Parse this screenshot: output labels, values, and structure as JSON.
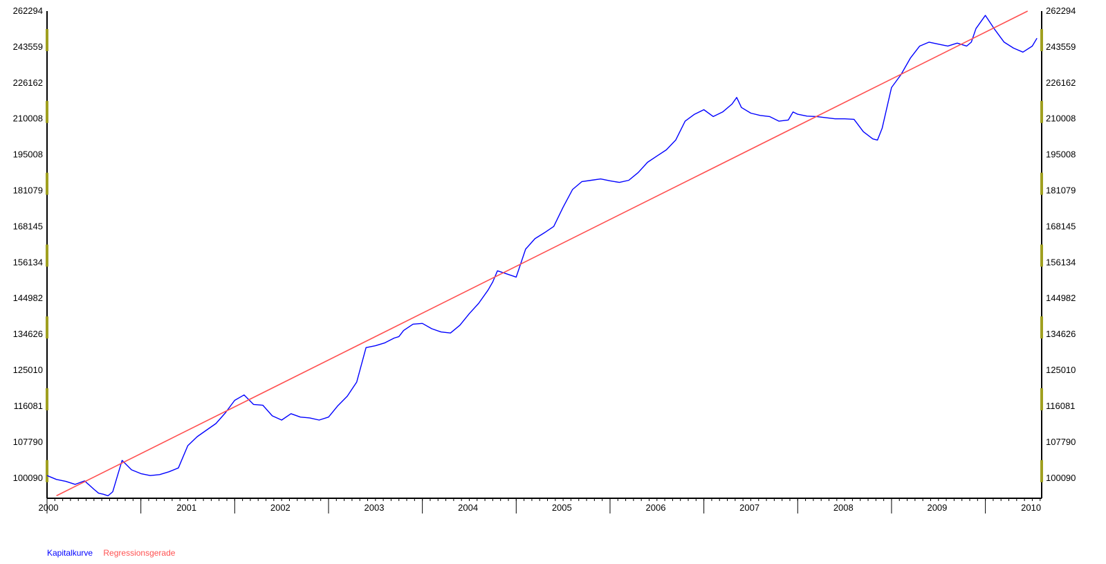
{
  "chart_data": {
    "type": "line",
    "xlabel": "",
    "ylabel": "",
    "y_ticks": [
      100090,
      107790,
      116081,
      125010,
      134626,
      144982,
      156134,
      168145,
      181079,
      195008,
      210008,
      226162,
      243559,
      262294
    ],
    "y_tick_labels": [
      "100090",
      "107790",
      "116081",
      "125010",
      "134626",
      "144982",
      "156134",
      "168145",
      "181079",
      "195008",
      "210008",
      "226162",
      "243559",
      "262294"
    ],
    "y_scale": "log",
    "ylim": [
      96000,
      262294
    ],
    "xlim": [
      2000.0,
      2010.6
    ],
    "x_ticks": [
      2000,
      2001,
      2002,
      2003,
      2004,
      2005,
      2006,
      2007,
      2008,
      2009,
      2010
    ],
    "x_tick_labels": [
      "2000",
      "2001",
      "2002",
      "2003",
      "2004",
      "2005",
      "2006",
      "2007",
      "2008",
      "2009",
      "2010"
    ],
    "grid": false,
    "legend": "bottom-left",
    "series": [
      {
        "name": "Kapitalkurve",
        "color": "#0000ff",
        "x": [
          2000.0,
          2000.1,
          2000.2,
          2000.3,
          2000.4,
          2000.5,
          2000.55,
          2000.6,
          2000.65,
          2000.7,
          2000.75,
          2000.8,
          2000.9,
          2001.0,
          2001.1,
          2001.2,
          2001.3,
          2001.4,
          2001.5,
          2001.6,
          2001.7,
          2001.8,
          2001.9,
          2002.0,
          2002.1,
          2002.2,
          2002.3,
          2002.4,
          2002.5,
          2002.6,
          2002.7,
          2002.8,
          2002.9,
          2003.0,
          2003.1,
          2003.2,
          2003.3,
          2003.4,
          2003.5,
          2003.6,
          2003.7,
          2003.75,
          2003.8,
          2003.9,
          2004.0,
          2004.1,
          2004.2,
          2004.3,
          2004.4,
          2004.5,
          2004.6,
          2004.7,
          2004.75,
          2004.8,
          2004.9,
          2005.0,
          2005.1,
          2005.2,
          2005.3,
          2005.4,
          2005.5,
          2005.6,
          2005.7,
          2005.8,
          2005.9,
          2006.0,
          2006.1,
          2006.2,
          2006.3,
          2006.4,
          2006.5,
          2006.6,
          2006.7,
          2006.8,
          2006.9,
          2007.0,
          2007.1,
          2007.2,
          2007.3,
          2007.35,
          2007.4,
          2007.5,
          2007.6,
          2007.7,
          2007.8,
          2007.9,
          2007.95,
          2008.0,
          2008.1,
          2008.2,
          2008.3,
          2008.4,
          2008.5,
          2008.6,
          2008.7,
          2008.8,
          2008.85,
          2008.9,
          2009.0,
          2009.1,
          2009.2,
          2009.3,
          2009.4,
          2009.5,
          2009.6,
          2009.7,
          2009.8,
          2009.85,
          2009.9,
          2010.0,
          2010.1,
          2010.2,
          2010.3,
          2010.4,
          2010.5,
          2010.55
        ],
        "y": [
          100600,
          99800,
          99400,
          98800,
          99500,
          97800,
          97000,
          96800,
          96500,
          97300,
          100500,
          103800,
          101800,
          101000,
          100600,
          100800,
          101400,
          102200,
          107000,
          109000,
          110500,
          112000,
          114500,
          117500,
          118800,
          116500,
          116300,
          113800,
          112800,
          114300,
          113500,
          113300,
          112800,
          113500,
          116200,
          118500,
          122000,
          131000,
          131500,
          132300,
          133600,
          134000,
          135700,
          137500,
          137700,
          136200,
          135300,
          135000,
          137200,
          140500,
          143500,
          147500,
          150000,
          153500,
          152500,
          151500,
          160500,
          164000,
          166000,
          168200,
          175000,
          181500,
          184500,
          185000,
          185500,
          184800,
          184200,
          185000,
          188000,
          192000,
          194500,
          197000,
          201000,
          209000,
          212000,
          214000,
          211000,
          213000,
          216500,
          219500,
          215000,
          212500,
          211500,
          211000,
          209000,
          209500,
          213000,
          212000,
          211200,
          211000,
          210500,
          210000,
          210000,
          209800,
          204500,
          201500,
          201000,
          206000,
          224000,
          230000,
          238000,
          244000,
          246000,
          245000,
          244000,
          245500,
          244000,
          246000,
          253000,
          260000,
          252500,
          246000,
          243000,
          241000,
          244000,
          248000
        ]
      },
      {
        "name": "Regressionsgerade",
        "color": "#ff5050",
        "x": [
          2000.1,
          2010.45
        ],
        "y": [
          96500,
          262294
        ]
      }
    ]
  }
}
